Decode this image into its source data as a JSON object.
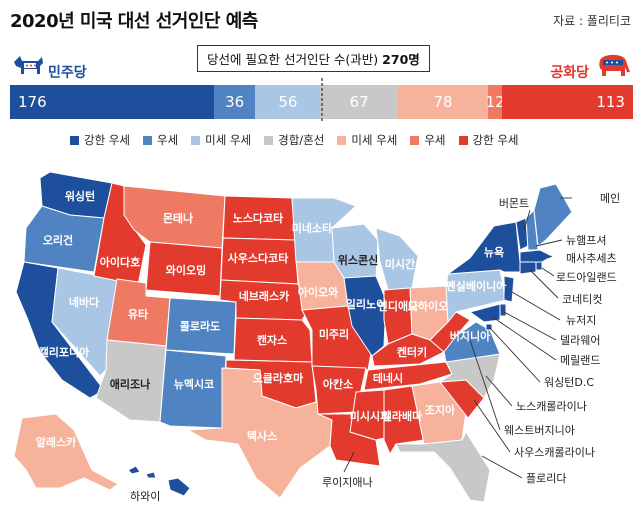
{
  "title": "2020년 미국 대선 선거인단 예측",
  "source": "자료 : 폴리티코",
  "parties": {
    "dem": "민주당",
    "rep": "공화당"
  },
  "threshold": {
    "text": "당선에 필요한 선거인단 수(과반)",
    "value": "270명"
  },
  "colors": {
    "strong_dem": "#1d4f9c",
    "dem": "#4f83c1",
    "lean_dem": "#a9c7e5",
    "tossup": "#c8c8c8",
    "lean_rep": "#f6b29a",
    "rep": "#ef7a63",
    "strong_rep": "#e33a2e"
  },
  "bar": [
    {
      "key": "strong_dem",
      "value": 176
    },
    {
      "key": "dem",
      "value": 36
    },
    {
      "key": "lean_dem",
      "value": 56
    },
    {
      "key": "tossup",
      "value": 67
    },
    {
      "key": "lean_rep",
      "value": 78
    },
    {
      "key": "rep",
      "value": 12
    },
    {
      "key": "strong_rep",
      "value": 113
    }
  ],
  "legend": [
    {
      "key": "strong_dem",
      "label": "강한 우세"
    },
    {
      "key": "dem",
      "label": "우세"
    },
    {
      "key": "lean_dem",
      "label": "미세 우세"
    },
    {
      "key": "tossup",
      "label": "경합/혼선"
    },
    {
      "key": "lean_rep",
      "label": "미세 우세"
    },
    {
      "key": "rep",
      "label": "우세"
    },
    {
      "key": "strong_rep",
      "label": "강한 우세"
    }
  ],
  "states": {
    "wa": "워싱턴",
    "or": "오리건",
    "ca": "캘리포니아",
    "nv": "네바다",
    "id": "아이다호",
    "mt": "몬태나",
    "wy": "와이오밍",
    "ut": "유타",
    "az": "애리조나",
    "co": "콜로라도",
    "nm": "뉴멕시코",
    "nd": "노스다코타",
    "sd": "사우스다코타",
    "ne": "네브래스카",
    "ks": "캔자스",
    "ok": "오클라호마",
    "tx": "텍사스",
    "mn": "미네소타",
    "ia": "아이오와",
    "mo": "미주리",
    "ar": "아칸소",
    "la": "루이지애나",
    "wi": "위스콘신",
    "il": "일리노이",
    "mi": "미시간",
    "in": "인디애나",
    "oh": "오하이오",
    "ky": "켄터키",
    "tn": "테네시",
    "ms": "미시시피",
    "al": "앨라배마",
    "ga": "조지아",
    "fl": "플로리다",
    "sc": "사우스캐롤라이나",
    "nc": "노스캐롤라이나",
    "va": "버지니아",
    "wv": "웨스트버지니아",
    "pa": "펜실베이니아",
    "ny": "뉴욕",
    "vt": "버몬트",
    "nh": "뉴햄프셔",
    "me": "메인",
    "ma": "매사추세츠",
    "ri": "로드아일랜드",
    "ct": "코네티컷",
    "nj": "뉴저지",
    "de": "델라웨어",
    "md": "메릴랜드",
    "dc": "워싱턴D.C",
    "ak": "알래스카",
    "hi": "하와이"
  }
}
